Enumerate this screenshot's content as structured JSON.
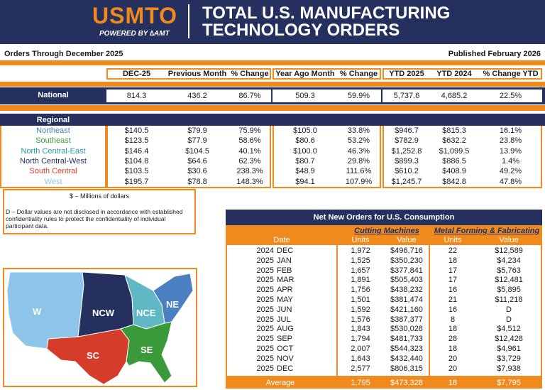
{
  "header": {
    "logo": "USMTO",
    "powered_by": "POWERED BY ∆AMT",
    "title_line1": "TOTAL U.S. MANUFACTURING",
    "title_line2": "TECHNOLOGY ORDERS"
  },
  "orders_through": "Orders Through December 2025",
  "published": "Published February 2026",
  "columns": [
    "DEC-25",
    "Previous Month",
    "% Change",
    "Year Ago Month",
    "% Change",
    "YTD 2025",
    "YTD 2024",
    "% Change YTD"
  ],
  "national": {
    "label": "National",
    "values": [
      "814.3",
      "436.2",
      "86.7%",
      "509.3",
      "59.9%",
      "5,737.6",
      "4,685.2",
      "22.5%"
    ]
  },
  "regional": {
    "label": "Regional",
    "rows": [
      {
        "name": "Northeast",
        "color": "#4a7fc1",
        "values": [
          "$140.5",
          "$79.9",
          "75.9%",
          "$105.0",
          "33.8%",
          "$946.7",
          "$815.3",
          "16.1%"
        ]
      },
      {
        "name": "Southeast",
        "color": "#3a9a3a",
        "values": [
          "$123.5",
          "$77.9",
          "58.6%",
          "$80.6",
          "53.2%",
          "$782.9",
          "$632.2",
          "23.8%"
        ]
      },
      {
        "name": "North Central-East",
        "color": "#2a9aa8",
        "values": [
          "$146.4",
          "$104.5",
          "40.1%",
          "$100.0",
          "46.3%",
          "$1,252.8",
          "$1,099.5",
          "13.9%"
        ]
      },
      {
        "name": "North Central-West",
        "color": "#25305f",
        "values": [
          "$104.8",
          "$64.6",
          "62.3%",
          "$80.7",
          "29.8%",
          "$899.3",
          "$886.5",
          "1.4%"
        ]
      },
      {
        "name": "South Central",
        "color": "#d63c2a",
        "values": [
          "$103.5",
          "$30.6",
          "238.3%",
          "$48.9",
          "111.6%",
          "$610.2",
          "$408.9",
          "49.2%"
        ]
      },
      {
        "name": "West",
        "color": "#8ec3ea",
        "values": [
          "$195.7",
          "$78.8",
          "148.3%",
          "$94.1",
          "107.9%",
          "$1,245.7",
          "$842.8",
          "47.8%"
        ]
      }
    ]
  },
  "notes": {
    "millions": "$ – Millions of dollars",
    "disclosure": "D – Dollar values are not disclosed in accordance with established confidentiality rules to protect the confidentiality of individual participant data."
  },
  "map": {
    "labels": [
      "W",
      "NCW",
      "NCE",
      "NE",
      "SC",
      "SE"
    ],
    "colors": {
      "W": "#8ec3ea",
      "NCW": "#25305f",
      "NCE": "#5fb8c4",
      "NE": "#4a7fc1",
      "SC": "#d63c2a",
      "SE": "#3a9a3a"
    }
  },
  "net_new_orders": {
    "title": "Net New Orders for U.S. Consumption",
    "group1": "Cutting Machines",
    "group2": "Metal Forming & Fabricating",
    "col_date": "Date",
    "col_units": "Units",
    "col_value": "Value",
    "rows": [
      {
        "year": "2024",
        "month": "DEC",
        "cu": "1,972",
        "cv": "$496,716",
        "fu": "22",
        "fv": "$12,589"
      },
      {
        "year": "2025",
        "month": "JAN",
        "cu": "1,525",
        "cv": "$350,230",
        "fu": "18",
        "fv": "$4,234"
      },
      {
        "year": "2025",
        "month": "FEB",
        "cu": "1,657",
        "cv": "$377,841",
        "fu": "17",
        "fv": "$5,763"
      },
      {
        "year": "2025",
        "month": "MAR",
        "cu": "1,891",
        "cv": "$505,403",
        "fu": "17",
        "fv": "$12,481"
      },
      {
        "year": "2025",
        "month": "APR",
        "cu": "1,756",
        "cv": "$438,232",
        "fu": "16",
        "fv": "$5,895"
      },
      {
        "year": "2025",
        "month": "MAY",
        "cu": "1,501",
        "cv": "$381,474",
        "fu": "21",
        "fv": "$11,218"
      },
      {
        "year": "2025",
        "month": "JUN",
        "cu": "1,592",
        "cv": "$421,160",
        "fu": "16",
        "fv": "D"
      },
      {
        "year": "2025",
        "month": "JUL",
        "cu": "1,576",
        "cv": "$387,377",
        "fu": "8",
        "fv": "D"
      },
      {
        "year": "2025",
        "month": "AUG",
        "cu": "1,843",
        "cv": "$530,028",
        "fu": "18",
        "fv": "$4,512"
      },
      {
        "year": "2025",
        "month": "SEP",
        "cu": "1,794",
        "cv": "$481,733",
        "fu": "28",
        "fv": "$12,428"
      },
      {
        "year": "2025",
        "month": "OCT",
        "cu": "2,007",
        "cv": "$544,323",
        "fu": "18",
        "fv": "$4,961"
      },
      {
        "year": "2025",
        "month": "NOV",
        "cu": "1,643",
        "cv": "$432,440",
        "fu": "20",
        "fv": "$3,729"
      },
      {
        "year": "2025",
        "month": "DEC",
        "cu": "2,577",
        "cv": "$806,315",
        "fu": "20",
        "fv": "$7,938"
      }
    ],
    "average": {
      "label": "Average",
      "cu": "1,795",
      "cv": "$473,328",
      "fu": "18",
      "fv": "$7,795"
    }
  }
}
